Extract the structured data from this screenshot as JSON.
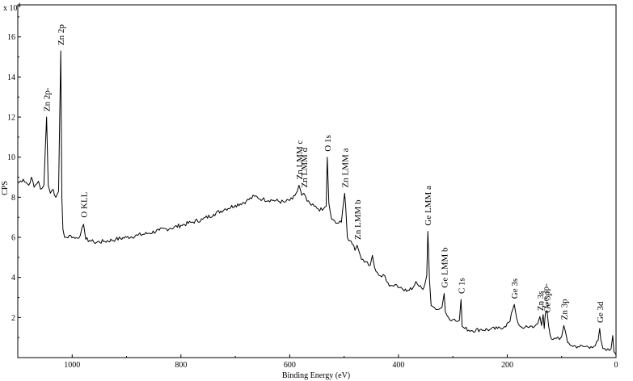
{
  "chart_data": {
    "type": "line",
    "title": "",
    "xlabel": "Binding Energy (eV)",
    "ylabel": "CPS",
    "y_multiplier": "x 10^4",
    "y_multiplier_base": "x 10",
    "y_multiplier_exp": "4",
    "xlim": [
      1100,
      0
    ],
    "ylim": [
      0,
      17.6
    ],
    "x_reversed": true,
    "grid": false,
    "x_ticks": [
      1000,
      800,
      600,
      400,
      200,
      0
    ],
    "x_tick_labels": [
      "1000",
      "800",
      "600",
      "400",
      "200",
      "0"
    ],
    "y_ticks": [
      2,
      4,
      6,
      8,
      10,
      12,
      14,
      16
    ],
    "y_tick_labels": [
      "2",
      "4",
      "6",
      "8",
      "10",
      "12",
      "14",
      "16"
    ],
    "series": [
      {
        "points": [
          [
            1100,
            8.7
          ],
          [
            1090,
            8.9
          ],
          [
            1080,
            8.6
          ],
          [
            1075,
            9.0
          ],
          [
            1070,
            8.5
          ],
          [
            1062,
            8.8
          ],
          [
            1058,
            8.4
          ],
          [
            1052,
            8.6
          ],
          [
            1047,
            12.0
          ],
          [
            1044,
            8.6
          ],
          [
            1040,
            8.2
          ],
          [
            1035,
            8.4
          ],
          [
            1030,
            8.0
          ],
          [
            1025,
            8.3
          ],
          [
            1021,
            15.3
          ],
          [
            1019,
            8.0
          ],
          [
            1017,
            6.4
          ],
          [
            1014,
            6.0
          ],
          [
            1010,
            6.0
          ],
          [
            1003,
            6.1
          ],
          [
            995,
            5.95
          ],
          [
            985,
            6.1
          ],
          [
            979,
            6.65
          ],
          [
            975,
            5.9
          ],
          [
            968,
            5.85
          ],
          [
            960,
            5.75
          ],
          [
            940,
            5.8
          ],
          [
            920,
            5.9
          ],
          [
            900,
            6.0
          ],
          [
            880,
            6.1
          ],
          [
            860,
            6.2
          ],
          [
            840,
            6.35
          ],
          [
            820,
            6.45
          ],
          [
            800,
            6.6
          ],
          [
            780,
            6.75
          ],
          [
            760,
            6.9
          ],
          [
            740,
            7.15
          ],
          [
            720,
            7.4
          ],
          [
            700,
            7.6
          ],
          [
            680,
            7.8
          ],
          [
            665,
            8.05
          ],
          [
            650,
            7.9
          ],
          [
            630,
            7.85
          ],
          [
            610,
            7.75
          ],
          [
            595,
            7.9
          ],
          [
            586,
            8.3
          ],
          [
            583,
            8.6
          ],
          [
            578,
            8.1
          ],
          [
            574,
            8.2
          ],
          [
            568,
            7.8
          ],
          [
            560,
            7.6
          ],
          [
            550,
            7.45
          ],
          [
            540,
            7.35
          ],
          [
            533,
            7.55
          ],
          [
            531,
            10.0
          ],
          [
            528,
            7.7
          ],
          [
            523,
            6.9
          ],
          [
            515,
            6.7
          ],
          [
            505,
            6.75
          ],
          [
            499,
            8.2
          ],
          [
            497,
            7.5
          ],
          [
            494,
            6.0
          ],
          [
            487,
            5.8
          ],
          [
            480,
            5.35
          ],
          [
            476,
            5.6
          ],
          [
            472,
            5.25
          ],
          [
            468,
            4.9
          ],
          [
            460,
            4.8
          ],
          [
            452,
            4.6
          ],
          [
            448,
            5.1
          ],
          [
            444,
            4.5
          ],
          [
            436,
            4.1
          ],
          [
            428,
            4.15
          ],
          [
            422,
            3.8
          ],
          [
            414,
            3.6
          ],
          [
            406,
            3.65
          ],
          [
            398,
            3.5
          ],
          [
            392,
            3.4
          ],
          [
            385,
            3.3
          ],
          [
            373,
            3.5
          ],
          [
            368,
            3.8
          ],
          [
            362,
            3.55
          ],
          [
            355,
            3.4
          ],
          [
            348,
            4.1
          ],
          [
            346,
            6.3
          ],
          [
            343,
            3.9
          ],
          [
            340,
            2.6
          ],
          [
            334,
            2.5
          ],
          [
            328,
            2.4
          ],
          [
            320,
            2.5
          ],
          [
            316,
            3.2
          ],
          [
            314,
            2.3
          ],
          [
            308,
            2.0
          ],
          [
            300,
            1.9
          ],
          [
            292,
            1.8
          ],
          [
            288,
            1.85
          ],
          [
            285,
            2.9
          ],
          [
            283,
            1.55
          ],
          [
            278,
            1.45
          ],
          [
            266,
            1.35
          ],
          [
            250,
            1.4
          ],
          [
            232,
            1.4
          ],
          [
            218,
            1.45
          ],
          [
            205,
            1.55
          ],
          [
            195,
            1.8
          ],
          [
            190,
            2.4
          ],
          [
            187,
            2.65
          ],
          [
            183,
            2.0
          ],
          [
            178,
            1.6
          ],
          [
            168,
            1.5
          ],
          [
            160,
            1.5
          ],
          [
            150,
            1.55
          ],
          [
            144,
            1.7
          ],
          [
            140,
            2.05
          ],
          [
            137,
            1.6
          ],
          [
            134,
            2.15
          ],
          [
            132,
            1.45
          ],
          [
            130,
            2.2
          ],
          [
            127,
            2.35
          ],
          [
            124,
            1.6
          ],
          [
            121,
            1.1
          ],
          [
            116,
            0.9
          ],
          [
            110,
            0.95
          ],
          [
            104,
            0.9
          ],
          [
            100,
            1.05
          ],
          [
            96,
            1.6
          ],
          [
            93,
            1.3
          ],
          [
            89,
            0.75
          ],
          [
            82,
            0.6
          ],
          [
            70,
            0.55
          ],
          [
            58,
            0.55
          ],
          [
            46,
            0.55
          ],
          [
            38,
            0.6
          ],
          [
            33,
            0.85
          ],
          [
            30,
            1.45
          ],
          [
            28,
            0.9
          ],
          [
            24,
            0.45
          ],
          [
            18,
            0.35
          ],
          [
            12,
            0.35
          ],
          [
            9,
            0.45
          ],
          [
            6,
            1.1
          ],
          [
            4,
            0.3
          ],
          [
            0,
            0.15
          ]
        ]
      }
    ],
    "annotations": [
      {
        "text": "Zn 2p-",
        "x": 1047,
        "y": 12.2
      },
      {
        "text": "Zn 2p",
        "x": 1021,
        "y": 15.5
      },
      {
        "text": "O KLL",
        "x": 979,
        "y": 6.9
      },
      {
        "text": "Zn LMM c",
        "x": 583,
        "y": 8.8
      },
      {
        "text": "Zn LMM d",
        "x": 574,
        "y": 8.4
      },
      {
        "text": "O 1s",
        "x": 531,
        "y": 10.2
      },
      {
        "text": "Zn LMM a",
        "x": 499,
        "y": 8.4
      },
      {
        "text": "Zn LMM b",
        "x": 476,
        "y": 5.8
      },
      {
        "text": "Ge LMM a",
        "x": 346,
        "y": 6.5
      },
      {
        "text": "Ge LMM b",
        "x": 316,
        "y": 3.4
      },
      {
        "text": "C 1s",
        "x": 285,
        "y": 3.1
      },
      {
        "text": "Ge 3s",
        "x": 187,
        "y": 2.85
      },
      {
        "text": "Zn 3s",
        "x": 140,
        "y": 2.25
      },
      {
        "text": "Ge 3p-",
        "x": 130,
        "y": 2.4
      },
      {
        "text": "Ge 3p",
        "x": 127,
        "y": 2.15
      },
      {
        "text": "Zn 3p",
        "x": 96,
        "y": 1.8
      },
      {
        "text": "Ge 3d",
        "x": 30,
        "y": 1.65
      }
    ]
  }
}
